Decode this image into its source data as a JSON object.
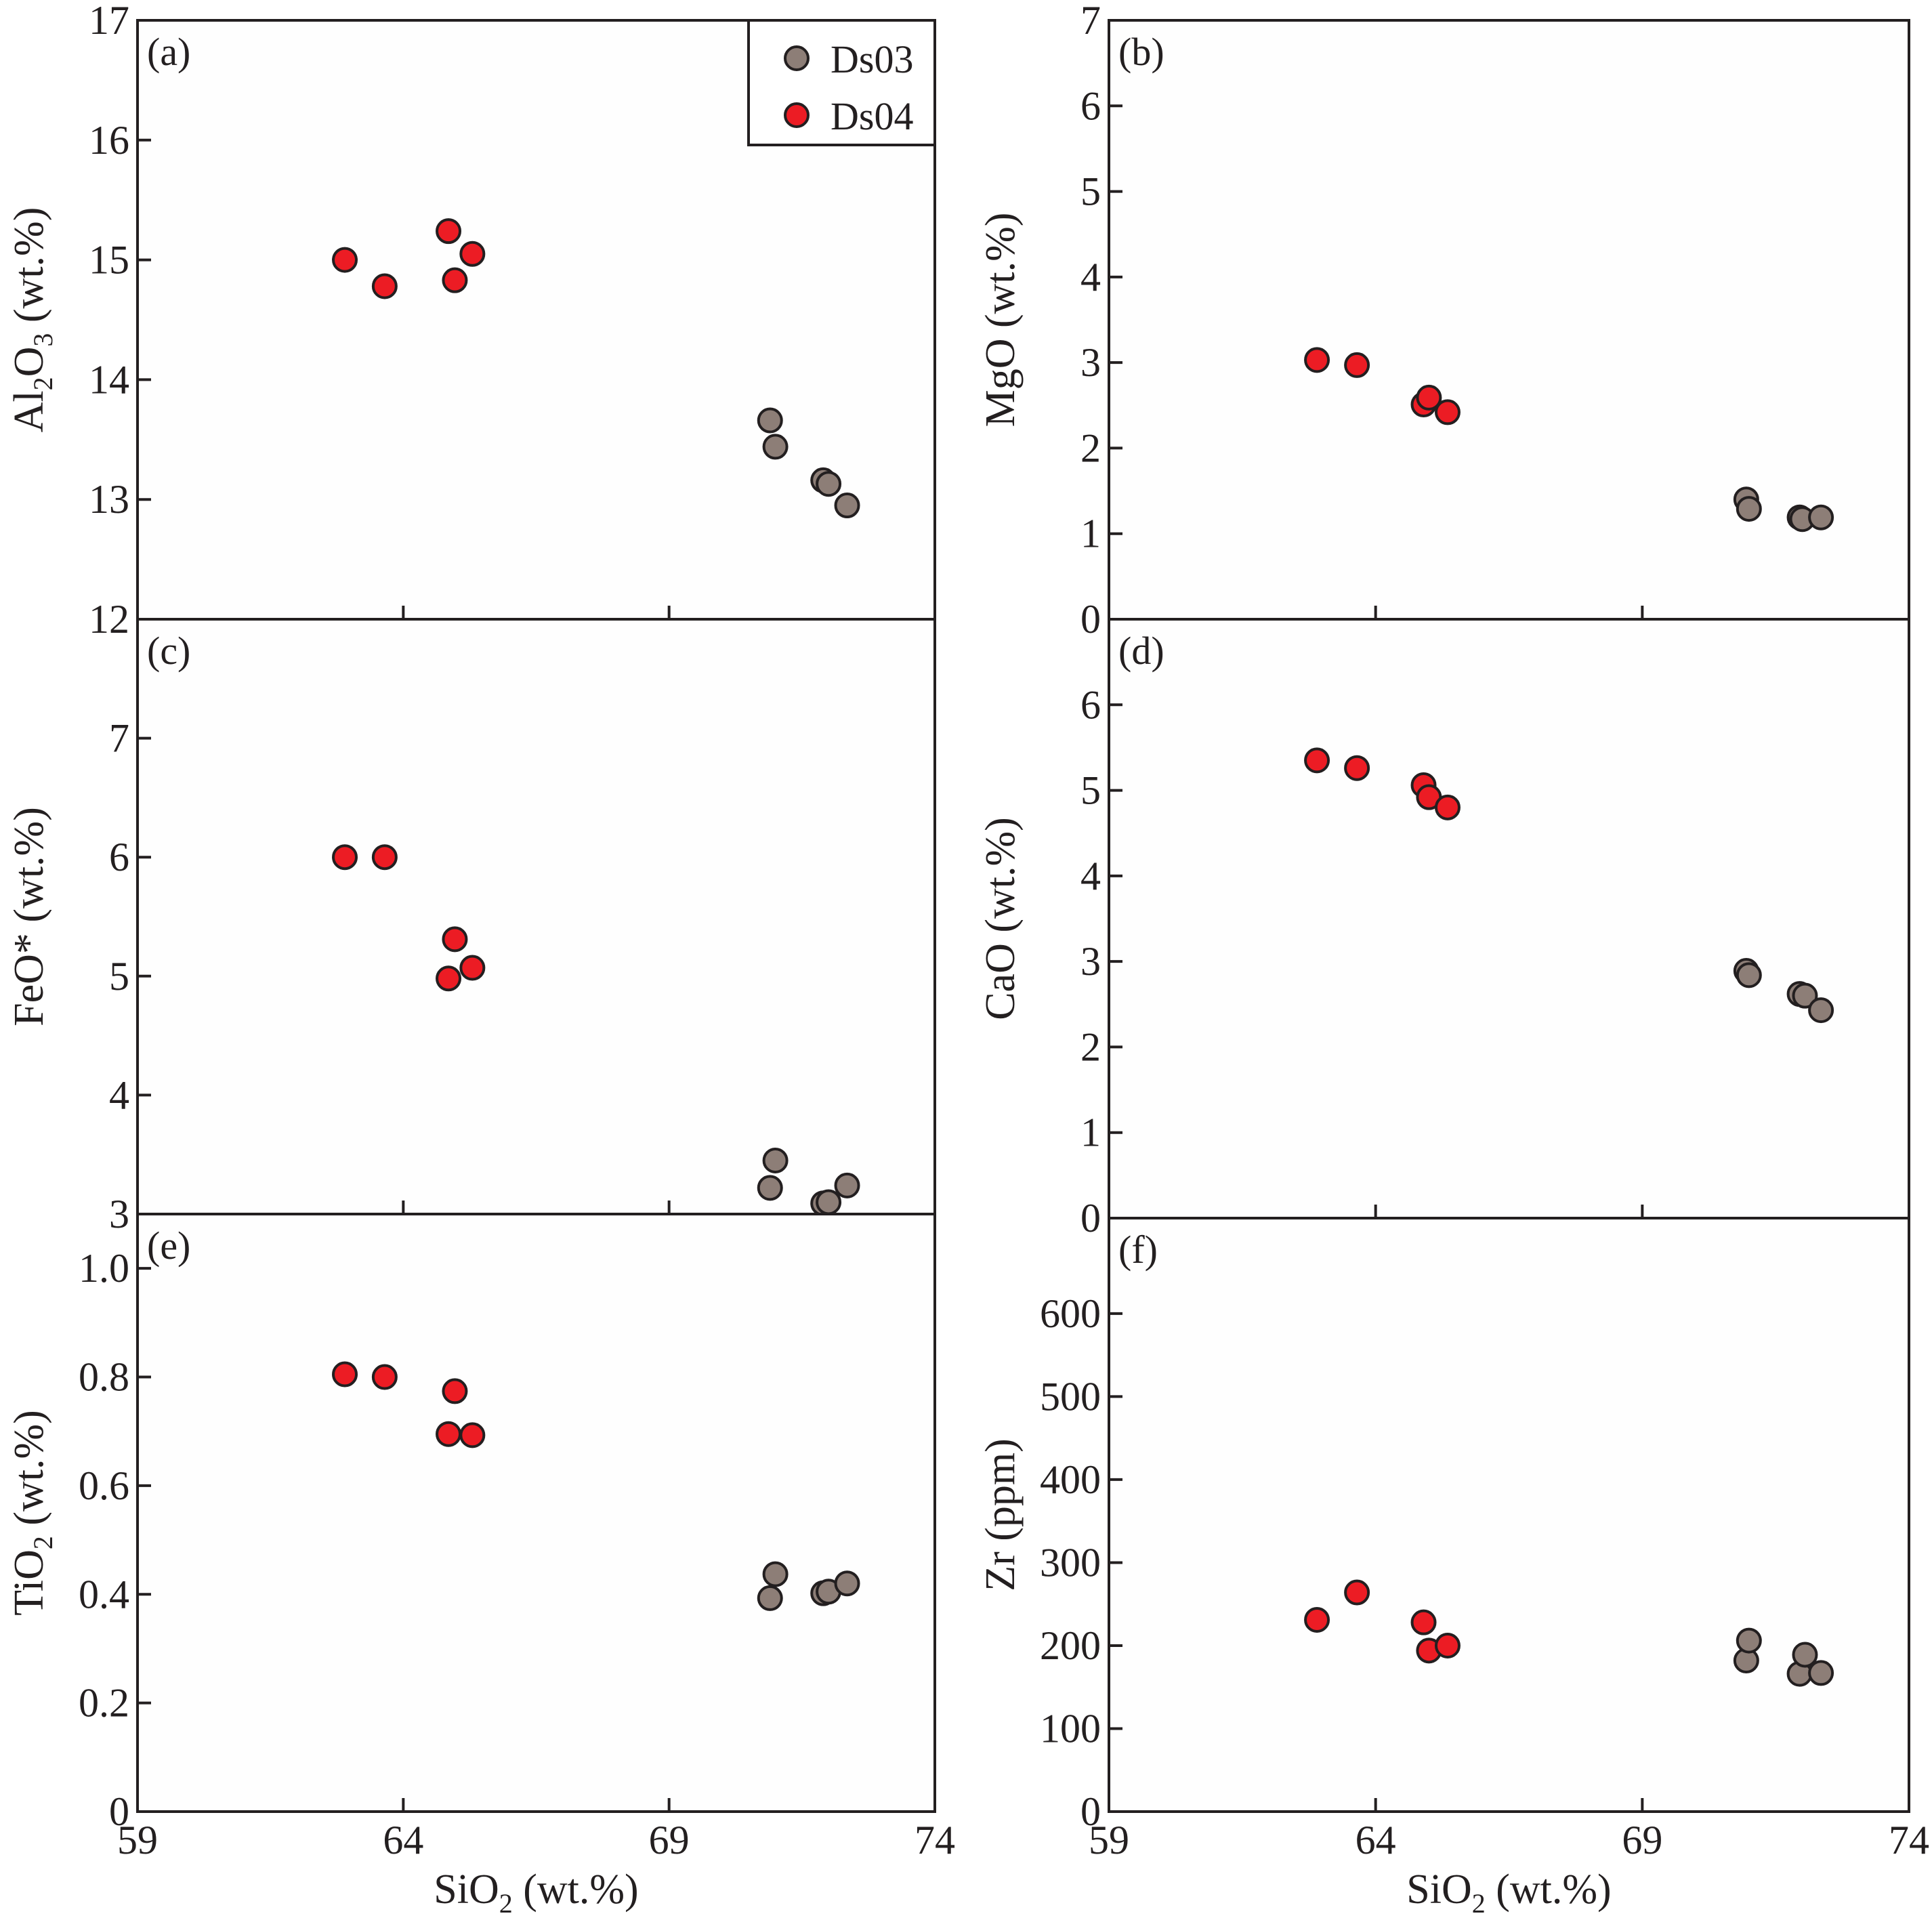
{
  "series_colors": {
    "Ds03": "#8d7e77",
    "Ds04": "#ec1c24"
  },
  "legend": [
    "Ds03",
    "Ds04"
  ],
  "chart_data": [
    {
      "type": "scatter",
      "panel": "(a)",
      "xlabel": "SiO2 (wt.%)",
      "xlabel_parts": [
        "SiO",
        "2",
        " (wt.%)"
      ],
      "ylabel": "Al2O3 (wt.%)",
      "ylabel_parts": [
        "Al",
        "2",
        "O",
        "3",
        " (wt.%)"
      ],
      "xlim": [
        59,
        74
      ],
      "ylim": [
        12,
        17
      ],
      "xticks": [
        59,
        64,
        69,
        74
      ],
      "xticklabels": [],
      "yticks": [
        12,
        13,
        14,
        15,
        16,
        17
      ],
      "yticklabels": [
        "12",
        "13",
        "14",
        "15",
        "16",
        "17"
      ],
      "series": [
        {
          "name": "Ds03",
          "x": [
            70.9,
            71.0,
            71.9,
            72.0,
            72.35
          ],
          "y": [
            13.66,
            13.44,
            13.16,
            13.13,
            12.95
          ]
        },
        {
          "name": "Ds04",
          "x": [
            62.9,
            63.65,
            64.85,
            64.97,
            65.3
          ],
          "y": [
            15.0,
            14.78,
            15.24,
            14.83,
            15.05
          ]
        }
      ]
    },
    {
      "type": "scatter",
      "panel": "(b)",
      "xlabel": "SiO2 (wt.%)",
      "xlabel_parts": [
        "SiO",
        "2",
        " (wt.%)"
      ],
      "ylabel": "MgO (wt.%)",
      "ylabel_parts": [
        "MgO (wt.%)"
      ],
      "xlim": [
        59,
        74
      ],
      "ylim": [
        0,
        7
      ],
      "xticks": [
        59,
        64,
        69,
        74
      ],
      "xticklabels": [],
      "yticks": [
        0,
        1,
        2,
        3,
        4,
        5,
        6,
        7
      ],
      "yticklabels": [
        "0",
        "1",
        "2",
        "3",
        "4",
        "5",
        "6",
        "7"
      ],
      "series": [
        {
          "name": "Ds03",
          "x": [
            70.95,
            71.0,
            71.95,
            72.0,
            72.35
          ],
          "y": [
            1.4,
            1.29,
            1.19,
            1.17,
            1.19
          ]
        },
        {
          "name": "Ds04",
          "x": [
            62.9,
            63.65,
            64.9,
            65.0,
            65.35
          ],
          "y": [
            3.03,
            2.97,
            2.51,
            2.59,
            2.42
          ]
        }
      ]
    },
    {
      "type": "scatter",
      "panel": "(c)",
      "xlabel": "SiO2 (wt.%)",
      "xlabel_parts": [
        "SiO",
        "2",
        " (wt.%)"
      ],
      "ylabel": "FeO* (wt.%)",
      "ylabel_parts": [
        "FeO* (wt.%)"
      ],
      "xlim": [
        59,
        74
      ],
      "ylim": [
        3,
        8
      ],
      "xticks": [
        59,
        64,
        69,
        74
      ],
      "xticklabels": [],
      "yticks": [
        3,
        4,
        5,
        6,
        7
      ],
      "yticklabels": [
        "3",
        "4",
        "5",
        "6",
        "7"
      ],
      "series": [
        {
          "name": "Ds03",
          "x": [
            70.9,
            71.0,
            71.9,
            72.0,
            72.35
          ],
          "y": [
            3.22,
            3.45,
            3.09,
            3.1,
            3.24
          ]
        },
        {
          "name": "Ds04",
          "x": [
            62.9,
            63.65,
            64.85,
            64.97,
            65.3
          ],
          "y": [
            6.0,
            6.0,
            4.98,
            5.31,
            5.07
          ]
        }
      ]
    },
    {
      "type": "scatter",
      "panel": "(d)",
      "xlabel": "SiO2 (wt.%)",
      "xlabel_parts": [
        "SiO",
        "2",
        " (wt.%)"
      ],
      "ylabel": "CaO (wt.%)",
      "ylabel_parts": [
        "CaO (wt.%)"
      ],
      "xlim": [
        59,
        74
      ],
      "ylim": [
        0,
        7
      ],
      "xticks": [
        59,
        64,
        69,
        74
      ],
      "xticklabels": [],
      "yticks": [
        0,
        1,
        2,
        3,
        4,
        5,
        6
      ],
      "yticklabels": [
        "0",
        "1",
        "2",
        "3",
        "4",
        "5",
        "6"
      ],
      "series": [
        {
          "name": "Ds03",
          "x": [
            70.95,
            71.0,
            71.95,
            72.05,
            72.35
          ],
          "y": [
            2.89,
            2.84,
            2.62,
            2.6,
            2.43
          ]
        },
        {
          "name": "Ds04",
          "x": [
            62.9,
            63.65,
            64.9,
            65.0,
            65.35
          ],
          "y": [
            5.35,
            5.26,
            5.06,
            4.92,
            4.8
          ]
        }
      ]
    },
    {
      "type": "scatter",
      "panel": "(e)",
      "xlabel": "SiO2 (wt.%)",
      "xlabel_parts": [
        "SiO",
        "2",
        " (wt.%)"
      ],
      "ylabel": "TiO2 (wt.%)",
      "ylabel_parts": [
        "TiO",
        "2",
        " (wt.%)"
      ],
      "xlim": [
        59,
        74
      ],
      "ylim": [
        0,
        1.05
      ],
      "xticks": [
        59,
        64,
        69,
        74
      ],
      "xticklabels": [
        "59",
        "64",
        "69",
        "74"
      ],
      "yticks": [
        0,
        0.2,
        0.4,
        0.6,
        0.8,
        1.0
      ],
      "yticklabels": [
        "0",
        "0.2",
        "0.4",
        "0.6",
        "0.8",
        "1.0"
      ],
      "series": [
        {
          "name": "Ds03",
          "x": [
            70.9,
            71.0,
            71.9,
            72.0,
            72.35
          ],
          "y": [
            0.393,
            0.437,
            0.402,
            0.405,
            0.42
          ]
        },
        {
          "name": "Ds04",
          "x": [
            62.9,
            63.65,
            64.85,
            64.97,
            65.3
          ],
          "y": [
            0.805,
            0.8,
            0.695,
            0.774,
            0.693
          ]
        }
      ]
    },
    {
      "type": "scatter",
      "panel": "(f)",
      "xlabel": "SiO2 (wt.%)",
      "xlabel_parts": [
        "SiO",
        "2",
        " (wt.%)"
      ],
      "ylabel": "Zr (ppm)",
      "ylabel_parts": [
        "Zr (ppm)"
      ],
      "xlim": [
        59,
        74
      ],
      "ylim": [
        0,
        700
      ],
      "xticks": [
        59,
        64,
        69,
        74
      ],
      "xticklabels": [
        "59",
        "64",
        "69",
        "74"
      ],
      "yticks": [
        0,
        100,
        200,
        300,
        400,
        500,
        600
      ],
      "yticklabels": [
        "0",
        "100",
        "200",
        "300",
        "400",
        "500",
        "600"
      ],
      "series": [
        {
          "name": "Ds03",
          "x": [
            70.95,
            71.0,
            71.95,
            72.05,
            72.35
          ],
          "y": [
            182,
            206,
            166,
            189,
            167
          ]
        },
        {
          "name": "Ds04",
          "x": [
            62.9,
            63.65,
            64.9,
            65.0,
            65.35
          ],
          "y": [
            231,
            264,
            228,
            194,
            200
          ]
        }
      ]
    }
  ]
}
